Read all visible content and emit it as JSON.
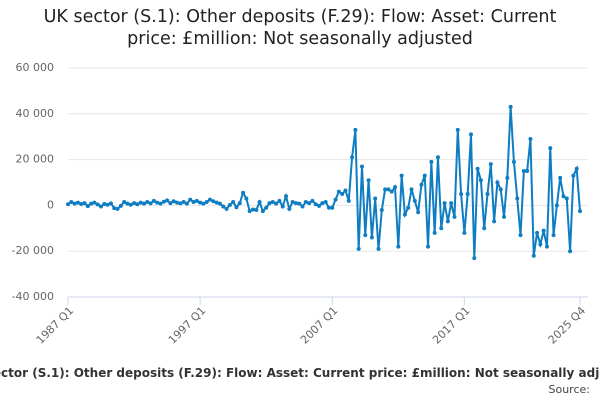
{
  "chart_data": {
    "type": "line",
    "title": "UK sector (S.1): Other deposits (F.29): Flow: Asset: Current price: £million: Not seasonally adjusted",
    "source": "Source:",
    "categories": [
      "1987 Q1",
      null,
      null,
      null,
      null,
      null,
      null,
      null,
      null,
      null,
      null,
      null,
      null,
      null,
      null,
      null,
      null,
      null,
      null,
      null,
      null,
      null,
      null,
      null,
      null,
      null,
      null,
      null,
      null,
      null,
      null,
      null,
      null,
      null,
      null,
      null,
      null,
      null,
      null,
      null,
      "1997 Q1",
      null,
      null,
      null,
      null,
      null,
      null,
      null,
      null,
      null,
      null,
      null,
      null,
      null,
      null,
      null,
      null,
      null,
      null,
      null,
      null,
      null,
      null,
      null,
      null,
      null,
      null,
      null,
      null,
      null,
      null,
      null,
      null,
      null,
      null,
      null,
      null,
      null,
      null,
      null,
      "2007 Q1",
      null,
      null,
      null,
      null,
      null,
      null,
      null,
      null,
      null,
      null,
      null,
      null,
      null,
      null,
      null,
      null,
      null,
      null,
      null,
      null,
      null,
      null,
      null,
      null,
      null,
      null,
      null,
      null,
      null,
      null,
      null,
      null,
      null,
      null,
      null,
      null,
      null,
      null,
      null,
      "2017 Q1",
      null,
      null,
      null,
      null,
      null,
      null,
      null,
      null,
      null,
      null,
      null,
      null,
      null,
      null,
      null,
      null,
      null,
      null,
      null,
      null,
      null,
      null,
      null,
      null,
      null,
      null,
      null,
      null,
      null,
      null,
      null,
      null,
      null,
      null,
      "2025 Q4"
    ],
    "series": [
      {
        "name": "UK sector (S.1): Other deposits (F.29): Flow: Asset: Current price: £million: Not seasonally adjusted",
        "color": "#0f7dc2",
        "values": [
          500,
          1500,
          800,
          1200,
          600,
          1000,
          -300,
          800,
          1200,
          400,
          -500,
          600,
          300,
          900,
          -1200,
          -1500,
          -200,
          1500,
          800,
          300,
          1000,
          500,
          1200,
          800,
          1500,
          900,
          2000,
          1200,
          800,
          1600,
          2200,
          1000,
          1800,
          1200,
          900,
          1500,
          800,
          2500,
          1500,
          2000,
          1200,
          800,
          1500,
          2500,
          1800,
          1200,
          800,
          -500,
          -1500,
          200,
          1500,
          -800,
          1000,
          5500,
          3000,
          -2500,
          -1800,
          -2000,
          1500,
          -2500,
          -1000,
          1000,
          1500,
          800,
          2000,
          -500,
          4000,
          -1500,
          1500,
          1000,
          800,
          -500,
          1500,
          1000,
          2000,
          500,
          -200,
          1000,
          1500,
          -1000,
          -1000,
          2500,
          6000,
          5000,
          6500,
          2000,
          21000,
          33000,
          -19000,
          17000,
          -13000,
          11000,
          -14000,
          3000,
          -19000,
          -2000,
          7000,
          7000,
          6000,
          8000,
          -18000,
          13000,
          -4000,
          -1000,
          7000,
          2000,
          -3000,
          9000,
          13000,
          -18000,
          19000,
          -12000,
          21000,
          -10000,
          1000,
          -7000,
          1000,
          -5000,
          33000,
          5000,
          -12000,
          5000,
          31000,
          -23000,
          16000,
          11000,
          -10000,
          5000,
          18000,
          -7000,
          10000,
          7000,
          -5000,
          12000,
          43000,
          19000,
          3000,
          -13000,
          15000,
          15000,
          29000,
          -22000,
          -12000,
          -17000,
          -11000,
          -18000,
          25000,
          -13000,
          0,
          12000,
          4000,
          3000,
          -20000,
          13000,
          16000,
          -2500
        ]
      }
    ],
    "ylim": [
      -40000,
      60000
    ],
    "yticks": [
      {
        "value": -40000,
        "label": "-40 000"
      },
      {
        "value": -20000,
        "label": "-20 000"
      },
      0,
      {
        "value": 20000,
        "label": "20 000"
      },
      {
        "value": 40000,
        "label": "40 000"
      },
      {
        "value": 60000,
        "label": "60 000"
      }
    ],
    "grid": true
  }
}
